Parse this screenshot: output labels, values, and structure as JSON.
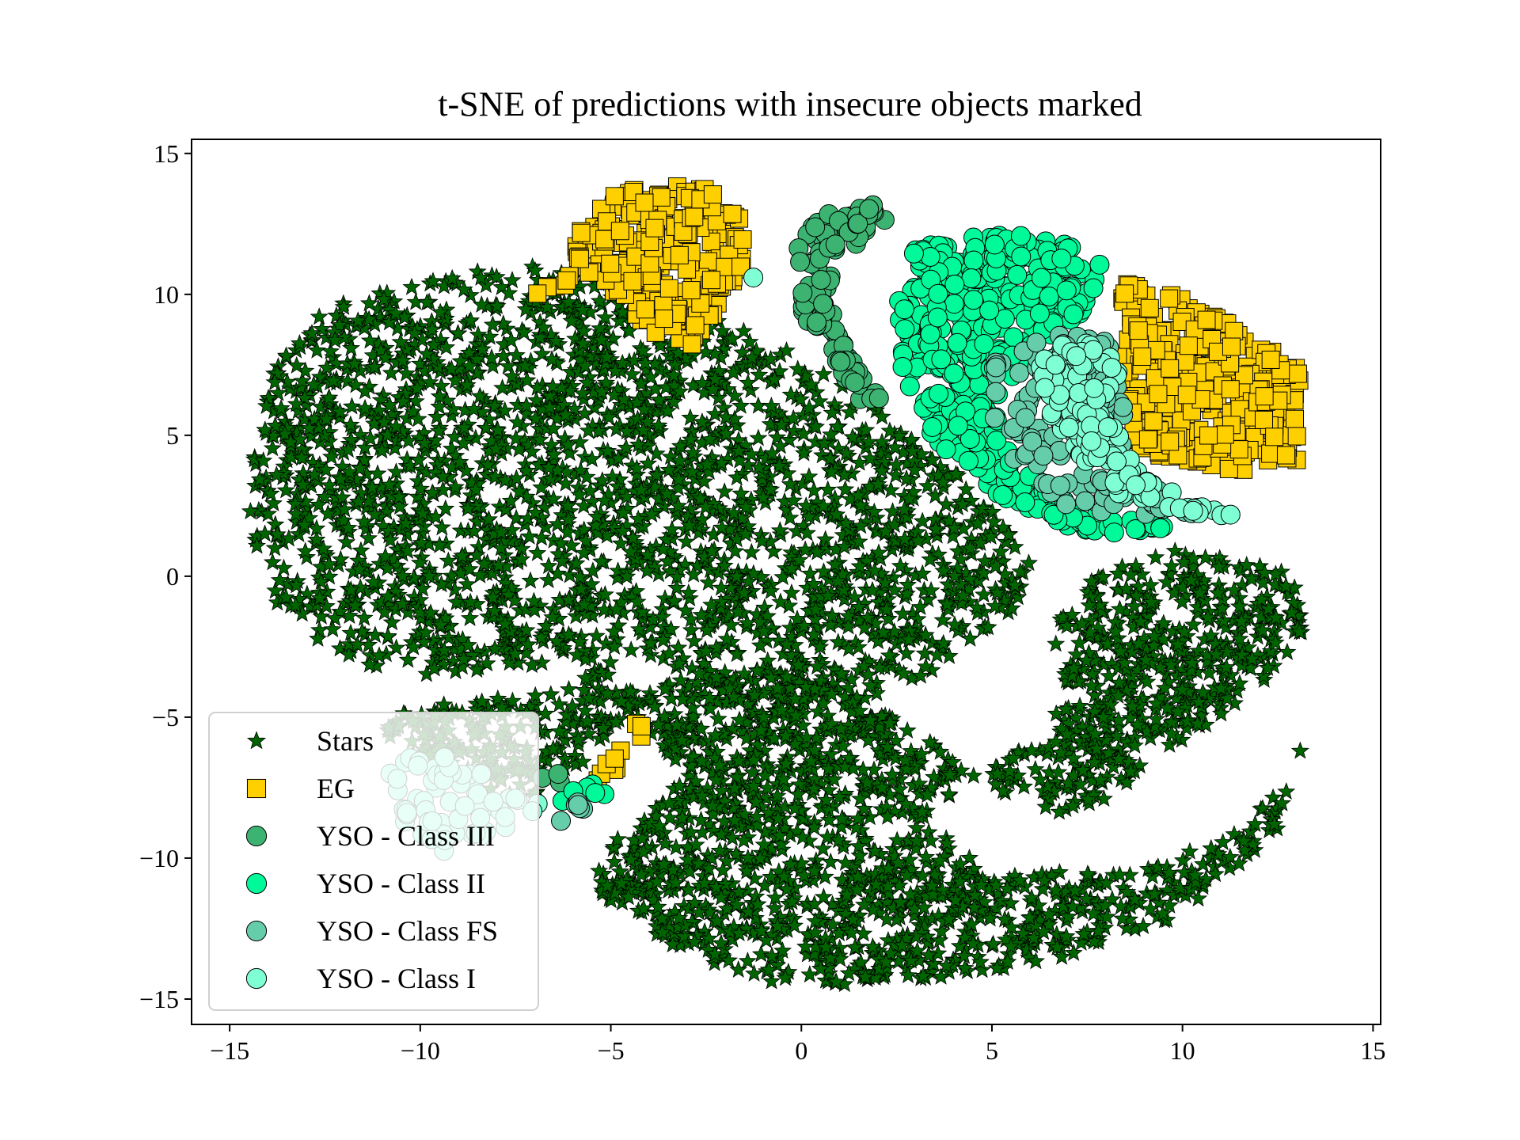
{
  "chart_data": {
    "type": "scatter",
    "title": "t-SNE of predictions with insecure objects marked",
    "xlabel": "",
    "ylabel": "",
    "xlim": [
      -16,
      15.2
    ],
    "ylim": [
      -15.9,
      15.5
    ],
    "xticks": [
      -15,
      -10,
      -5,
      0,
      5,
      10,
      15
    ],
    "yticks": [
      -15,
      -10,
      -5,
      0,
      5,
      10,
      15
    ],
    "xtick_labels": [
      "−15",
      "−10",
      "−5",
      "0",
      "5",
      "10",
      "15"
    ],
    "ytick_labels": [
      "−15",
      "−10",
      "−5",
      "0",
      "5",
      "10",
      "15"
    ],
    "grid": false,
    "legend_position": "lower-left",
    "series": [
      {
        "name": "Stars",
        "marker": "star",
        "color": "#006400",
        "regions": [
          {
            "shape": "poly",
            "points": [
              [
                -14.6,
                2
              ],
              [
                -14.3,
                5
              ],
              [
                -13.8,
                7.5
              ],
              [
                -12.5,
                9.5
              ],
              [
                -10,
                10.6
              ],
              [
                -7,
                11
              ],
              [
                -5,
                10.4
              ],
              [
                -3,
                9.5
              ],
              [
                -1,
                8.5
              ],
              [
                1,
                7
              ],
              [
                3,
                5
              ],
              [
                5,
                2.5
              ],
              [
                6,
                0.5
              ],
              [
                5.5,
                -1.5
              ],
              [
                4,
                -3
              ],
              [
                2,
                -4.5
              ],
              [
                0,
                -5
              ],
              [
                -2,
                -4
              ],
              [
                -3.5,
                -3.2
              ],
              [
                -6,
                -3
              ],
              [
                -8,
                -3.3
              ],
              [
                -10,
                -3.5
              ],
              [
                -12,
                -3
              ],
              [
                -13.5,
                -1.5
              ],
              [
                -14.5,
                0.5
              ]
            ],
            "count": 2300
          },
          {
            "shape": "poly",
            "points": [
              [
                -5.5,
                -5
              ],
              [
                -3,
                -3.5
              ],
              [
                -1,
                -3.2
              ],
              [
                1,
                -4
              ],
              [
                3,
                -5.5
              ],
              [
                5,
                -7.5
              ],
              [
                6.5,
                -8.5
              ],
              [
                8,
                -8
              ],
              [
                10,
                -6
              ],
              [
                12,
                -4
              ],
              [
                13.5,
                -1.5
              ],
              [
                12.5,
                0.5
              ],
              [
                10,
                1
              ],
              [
                7.5,
                0
              ],
              [
                6.5,
                -2
              ],
              [
                7,
                -4
              ],
              [
                6,
                -6
              ],
              [
                4,
                -7.5
              ],
              [
                3.5,
                -9
              ],
              [
                5,
                -10.5
              ],
              [
                8,
                -10.5
              ],
              [
                11,
                -9.5
              ],
              [
                13,
                -7
              ],
              [
                13.5,
                -4
              ],
              [
                12.5,
                -9
              ],
              [
                10,
                -12
              ],
              [
                7,
                -13.5
              ],
              [
                3,
                -14.5
              ],
              [
                -1,
                -14.5
              ],
              [
                -3.5,
                -13
              ],
              [
                -5.5,
                -11
              ],
              [
                -5,
                -9.5
              ],
              [
                -3,
                -7
              ],
              [
                -4,
                -5.5
              ]
            ],
            "count": 1900
          },
          {
            "shape": "poly",
            "points": [
              [
                -11,
                -4.8
              ],
              [
                -9,
                -4.5
              ],
              [
                -7,
                -4.2
              ],
              [
                -5.2,
                -3.2
              ],
              [
                -4.2,
                -4
              ],
              [
                -5,
                -5.5
              ],
              [
                -6,
                -7
              ],
              [
                -7,
                -8
              ],
              [
                -8.5,
                -7.5
              ],
              [
                -10,
                -6.5
              ],
              [
                -11,
                -5.5
              ]
            ],
            "count": 220
          }
        ]
      },
      {
        "name": "EG",
        "marker": "square",
        "color": "#FFD000",
        "regions": [
          {
            "shape": "poly",
            "points": [
              [
                -6,
                12
              ],
              [
                -5,
                13.5
              ],
              [
                -3.5,
                14
              ],
              [
                -2,
                13.6
              ],
              [
                -1.3,
                12.3
              ],
              [
                -1.6,
                10.5
              ],
              [
                -2.3,
                9.2
              ],
              [
                -3,
                8
              ],
              [
                -4.2,
                8.8
              ],
              [
                -5,
                10.2
              ],
              [
                -5.8,
                11
              ]
            ],
            "count": 230
          },
          {
            "shape": "poly",
            "points": [
              [
                -7.2,
                10
              ],
              [
                -6.2,
                10.8
              ],
              [
                -5.4,
                10.5
              ],
              [
                -6.6,
                9.9
              ]
            ],
            "count": 6
          },
          {
            "shape": "poly",
            "points": [
              [
                8.5,
                10.8
              ],
              [
                10.5,
                9.5
              ],
              [
                12.5,
                8
              ],
              [
                13.3,
                7
              ],
              [
                13.3,
                4.2
              ],
              [
                11.5,
                3.7
              ],
              [
                9.5,
                4.2
              ],
              [
                8.2,
                5
              ],
              [
                8,
                7
              ],
              [
                8.6,
                8.8
              ],
              [
                8.4,
                10
              ]
            ],
            "count": 330
          },
          {
            "shape": "poly",
            "points": [
              [
                -5.5,
                -7.4
              ],
              [
                -4.8,
                -6
              ],
              [
                -4.3,
                -4.9
              ],
              [
                -4.1,
                -5.6
              ],
              [
                -4.9,
                -7
              ]
            ],
            "count": 10
          }
        ]
      },
      {
        "name": "YSO - Class III",
        "marker": "circle",
        "color": "#3CB371",
        "regions": [
          {
            "shape": "poly",
            "points": [
              [
                -0.2,
                11.5
              ],
              [
                0.5,
                12.8
              ],
              [
                2,
                13.5
              ],
              [
                2.4,
                12.8
              ],
              [
                1.2,
                11.5
              ],
              [
                0.6,
                10
              ],
              [
                1.2,
                8
              ],
              [
                2.2,
                6.2
              ],
              [
                1.7,
                6
              ],
              [
                0.6,
                7.8
              ],
              [
                -0.1,
                9.8
              ]
            ],
            "count": 110
          },
          {
            "shape": "poly",
            "points": [
              [
                -6.9,
                -6.8
              ],
              [
                -6.3,
                -6.8
              ],
              [
                -6.3,
                -7.6
              ],
              [
                -6.9,
                -7.6
              ]
            ],
            "count": 3
          }
        ]
      },
      {
        "name": "YSO - Class II",
        "marker": "circle",
        "color": "#00FA9A",
        "regions": [
          {
            "shape": "poly",
            "points": [
              [
                2.8,
                11.5
              ],
              [
                4.5,
                12.2
              ],
              [
                6.5,
                12
              ],
              [
                8,
                11.2
              ],
              [
                7.5,
                9.5
              ],
              [
                6,
                8
              ],
              [
                5,
                6
              ],
              [
                5.8,
                4
              ],
              [
                7.2,
                2.5
              ],
              [
                8.8,
                2
              ],
              [
                10,
                1.7
              ],
              [
                8,
                1.5
              ],
              [
                6,
                2
              ],
              [
                4.5,
                3.5
              ],
              [
                3.3,
                5.2
              ],
              [
                2.6,
                7.5
              ],
              [
                2.5,
                9.5
              ]
            ],
            "count": 420
          },
          {
            "shape": "poly",
            "points": [
              [
                -6.6,
                -7.9
              ],
              [
                -5.2,
                -7.2
              ],
              [
                -5,
                -7.8
              ],
              [
                -6,
                -8.3
              ]
            ],
            "count": 6
          }
        ]
      },
      {
        "name": "YSO - Class FS",
        "marker": "circle",
        "color": "#66CDAA",
        "regions": [
          {
            "shape": "poly",
            "points": [
              [
                5,
                7.5
              ],
              [
                6.5,
                9
              ],
              [
                8,
                8.5
              ],
              [
                8.5,
                6
              ],
              [
                8.5,
                4
              ],
              [
                10,
                2.8
              ],
              [
                11,
                2.3
              ],
              [
                9,
                2
              ],
              [
                6.8,
                2.5
              ],
              [
                5.6,
                4
              ],
              [
                5,
                5.8
              ]
            ],
            "count": 150
          },
          {
            "shape": "poly",
            "points": [
              [
                -6.5,
                -8.5
              ],
              [
                -5.8,
                -7.9
              ],
              [
                -5.5,
                -8.3
              ],
              [
                -6.2,
                -8.8
              ]
            ],
            "count": 6
          }
        ]
      },
      {
        "name": "YSO - Class I",
        "marker": "circle",
        "color": "#7FFFD4",
        "regions": [
          {
            "shape": "poly",
            "points": [
              [
                6.2,
                8
              ],
              [
                7.8,
                8.5
              ],
              [
                8.4,
                7.2
              ],
              [
                8,
                5.8
              ],
              [
                8.8,
                3.8
              ],
              [
                10.4,
                2.5
              ],
              [
                11.6,
                2.1
              ],
              [
                10,
                2.2
              ],
              [
                8.4,
                2.8
              ],
              [
                7.3,
                4.2
              ],
              [
                6.4,
                6
              ]
            ],
            "count": 130
          },
          {
            "shape": "poly",
            "points": [
              [
                -11,
                -6.5
              ],
              [
                -9.5,
                -6.3
              ],
              [
                -7,
                -7.8
              ],
              [
                -6.5,
                -8.3
              ],
              [
                -7.5,
                -8.8
              ],
              [
                -9,
                -9.5
              ],
              [
                -10,
                -10.5
              ],
              [
                -10.5,
                -9
              ],
              [
                -10.6,
                -7.5
              ]
            ],
            "count": 60
          },
          {
            "shape": "poly",
            "points": [
              [
                -1.6,
                10.6
              ],
              [
                -1.2,
                10.6
              ],
              [
                -1.2,
                10.2
              ],
              [
                -1.6,
                10.2
              ]
            ],
            "count": 1
          }
        ]
      }
    ]
  }
}
